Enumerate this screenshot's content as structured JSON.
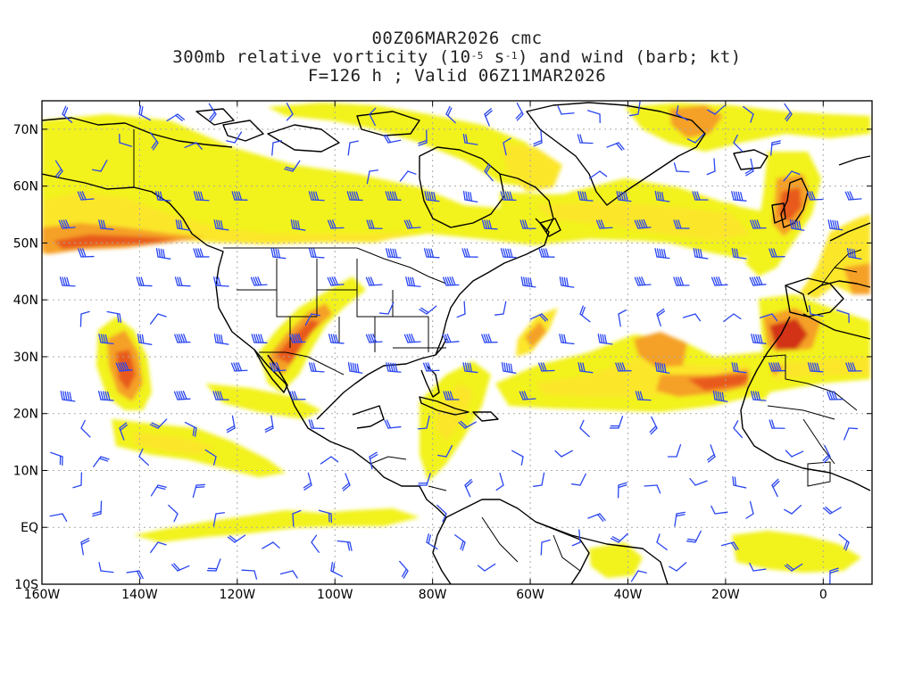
{
  "title": {
    "line1": "00Z06MAR2026 cmc",
    "line2_prefix": "300mb relative vorticity (10",
    "line2_exp1": "-5",
    "line2_mid": " s",
    "line2_exp2": "-1",
    "line2_suffix": ") and wind (barb; kt)",
    "line3": "F=126 h ; Valid 06Z11MAR2026"
  },
  "map": {
    "lon_range": [
      -160,
      10
    ],
    "lat_range": [
      -10,
      75
    ],
    "lat_ticks": [
      {
        "lat": 70,
        "label": "70N"
      },
      {
        "lat": 60,
        "label": "60N"
      },
      {
        "lat": 50,
        "label": "50N"
      },
      {
        "lat": 40,
        "label": "40N"
      },
      {
        "lat": 30,
        "label": "30N"
      },
      {
        "lat": 20,
        "label": "20N"
      },
      {
        "lat": 10,
        "label": "10N"
      },
      {
        "lat": 0,
        "label": "EQ"
      },
      {
        "lat": -10,
        "label": "10S"
      }
    ],
    "lon_ticks": [
      {
        "lon": -160,
        "label": "160W"
      },
      {
        "lon": -140,
        "label": "140W"
      },
      {
        "lon": -120,
        "label": "120W"
      },
      {
        "lon": -100,
        "label": "100W"
      },
      {
        "lon": -80,
        "label": "80W"
      },
      {
        "lon": -60,
        "label": "60W"
      },
      {
        "lon": -40,
        "label": "40W"
      },
      {
        "lon": -20,
        "label": "20W"
      },
      {
        "lon": 0,
        "label": "0"
      }
    ],
    "colors": {
      "shade_light": "#f2f21a",
      "shade_yellow": "#fbe62a",
      "shade_orange_light": "#fbc832",
      "shade_orange": "#f5a028",
      "shade_red": "#e85a1e",
      "shade_darkred": "#d23216",
      "barb": "#2a46f0",
      "coast": "#000000",
      "grid": "#aaaaaa"
    }
  }
}
